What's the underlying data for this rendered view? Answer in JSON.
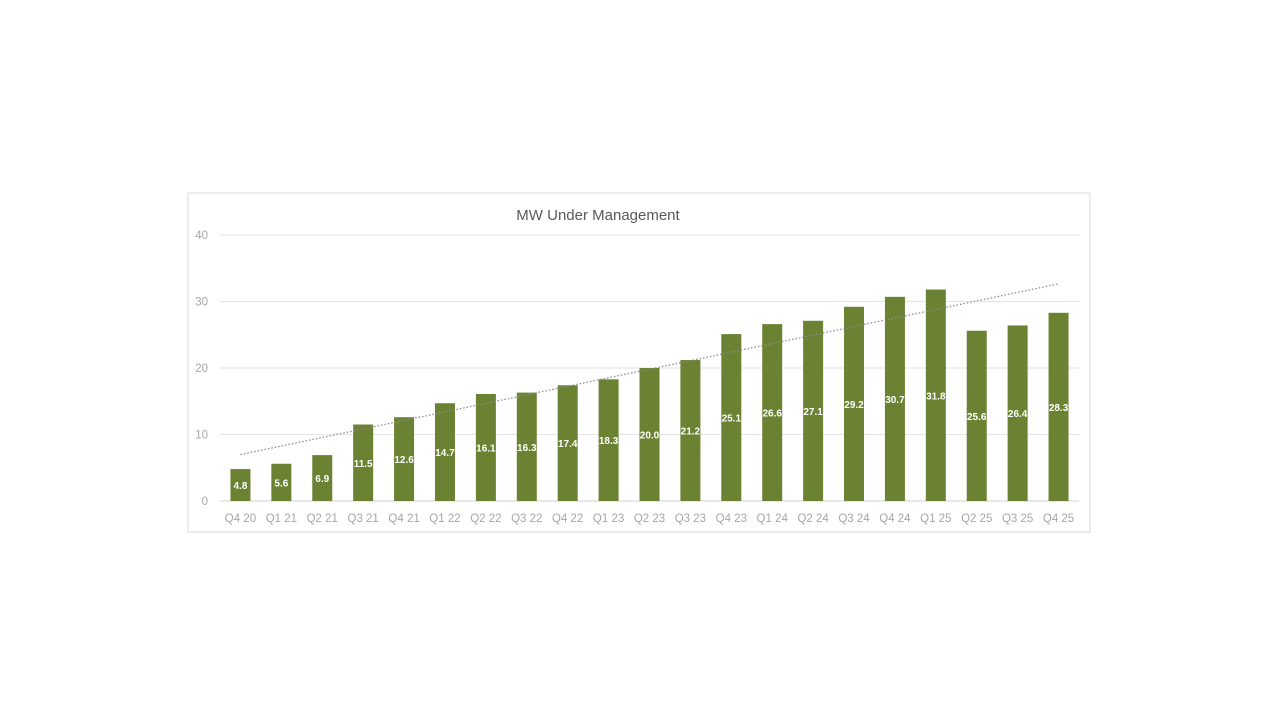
{
  "chart_data": {
    "type": "bar",
    "title": "MW Under Management",
    "xlabel": "",
    "ylabel": "",
    "ylim": [
      0,
      40
    ],
    "yticks": [
      0,
      10,
      20,
      30,
      40
    ],
    "grid": true,
    "legend": "none",
    "trendline": "linear",
    "bar_color": "#6b8233",
    "trend_color": "#8c8c8c",
    "categories": [
      "Q4 20",
      "Q1 21",
      "Q2 21",
      "Q3 21",
      "Q4 21",
      "Q1 22",
      "Q2 22",
      "Q3 22",
      "Q4 22",
      "Q1 23",
      "Q2 23",
      "Q3 23",
      "Q4 23",
      "Q1 24",
      "Q2 24",
      "Q3 24",
      "Q4 24",
      "Q1 25",
      "Q2 25",
      "Q3 25",
      "Q4 25"
    ],
    "values": [
      4.8,
      5.6,
      6.9,
      11.5,
      12.6,
      14.7,
      16.1,
      16.3,
      17.4,
      18.3,
      20.0,
      21.2,
      25.1,
      26.6,
      27.1,
      29.2,
      30.7,
      31.8,
      25.6,
      26.4,
      28.3
    ],
    "data_labels": [
      "4.8",
      "5.6",
      "6.9",
      "11.5",
      "12.6",
      "14.7",
      "16.1",
      "16.3",
      "17.4",
      "18.3",
      "20.0",
      "21.2",
      "25.1",
      "26.6",
      "27.1",
      "29.2",
      "30.7",
      "31.8",
      "25.6",
      "26.4",
      "28.3"
    ]
  }
}
